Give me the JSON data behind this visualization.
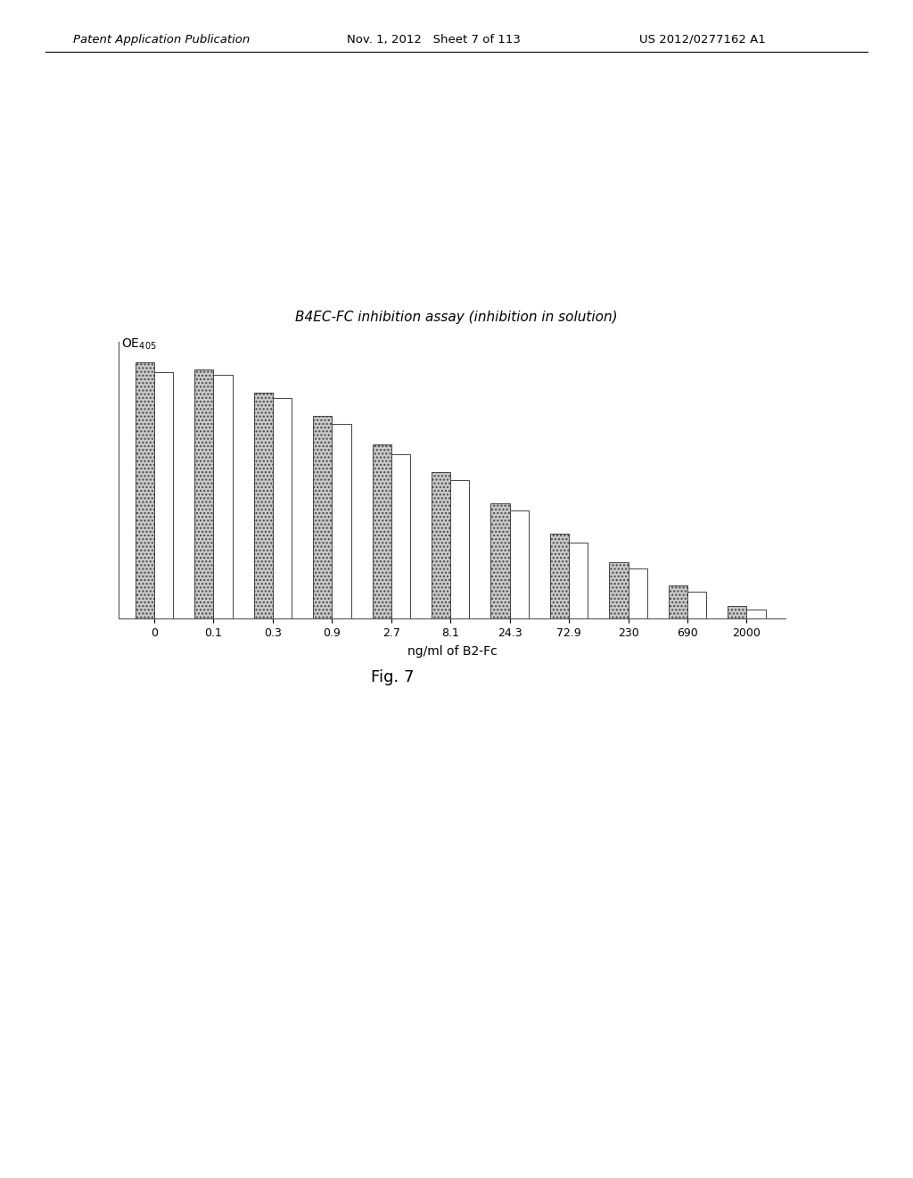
{
  "title": "B4EC-FC inhibition assay (inhibition in solution)",
  "ylabel": "OE_{405}",
  "xlabel": "ng/ml of B2-Fc",
  "figure_caption": "Fig. 7",
  "header_left": "Patent Application Publication",
  "header_center": "Nov. 1, 2012   Sheet 7 of 113",
  "header_right": "US 2012/0277162 A1",
  "x_labels": [
    "0",
    "0.1",
    "0.3",
    "0.9",
    "2.7",
    "8.1",
    "24.3",
    "72.9",
    "230",
    "690",
    "2000"
  ],
  "bar1_heights": [
    1.0,
    0.97,
    0.88,
    0.79,
    0.68,
    0.57,
    0.45,
    0.33,
    0.22,
    0.13,
    0.05
  ],
  "bar2_heights": [
    0.96,
    0.95,
    0.86,
    0.76,
    0.64,
    0.54,
    0.42,
    0.295,
    0.195,
    0.105,
    0.036
  ],
  "bar1_color": "#c8c8c8",
  "bar1_hatch": "....",
  "bar2_color": "white",
  "bar2_edgecolor": "#555555",
  "bar_width": 0.32,
  "ylim": [
    0,
    1.08
  ],
  "background_color": "white",
  "fig_width": 10.24,
  "fig_height": 13.2
}
